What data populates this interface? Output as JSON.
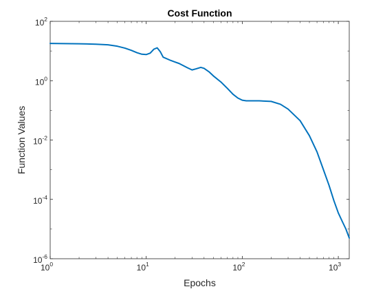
{
  "chart_data": {
    "type": "line",
    "title": "Cost Function",
    "xlabel": "Epochs",
    "ylabel": "Function Values",
    "xscale": "log",
    "yscale": "log",
    "xlim": [
      1,
      1300
    ],
    "ylim": [
      1e-06,
      100
    ],
    "grid": false,
    "legend": "none",
    "x_ticks": [
      {
        "value": 1,
        "base": "10",
        "exp": "0"
      },
      {
        "value": 10,
        "base": "10",
        "exp": "1"
      },
      {
        "value": 100,
        "base": "10",
        "exp": "2"
      },
      {
        "value": 1000,
        "base": "10",
        "exp": "3"
      }
    ],
    "y_ticks": [
      {
        "value": 1e-06,
        "base": "10",
        "exp": "-6"
      },
      {
        "value": 0.0001,
        "base": "10",
        "exp": "-4"
      },
      {
        "value": 0.01,
        "base": "10",
        "exp": "-2"
      },
      {
        "value": 1,
        "base": "10",
        "exp": "0"
      },
      {
        "value": 100,
        "base": "10",
        "exp": "2"
      }
    ],
    "series": [
      {
        "color": "#0072BD",
        "x": [
          1,
          2,
          3,
          4,
          5,
          6,
          7,
          8,
          9,
          10,
          11,
          12,
          13,
          14,
          15,
          18,
          22,
          27,
          30,
          33,
          37,
          40,
          45,
          50,
          60,
          70,
          80,
          90,
          100,
          110,
          130,
          150,
          200,
          250,
          300,
          400,
          500,
          600,
          700,
          800,
          900,
          1000,
          1100,
          1200,
          1300
        ],
        "y": [
          18,
          17.5,
          17,
          16.2,
          14.5,
          12.5,
          10.5,
          8.8,
          7.8,
          7.6,
          8.5,
          11.5,
          12.8,
          9.5,
          6.2,
          4.8,
          3.8,
          2.7,
          2.3,
          2.5,
          2.8,
          2.6,
          2.0,
          1.45,
          0.9,
          0.55,
          0.35,
          0.26,
          0.22,
          0.21,
          0.21,
          0.21,
          0.2,
          0.16,
          0.11,
          0.045,
          0.014,
          0.004,
          0.001,
          0.0003,
          9e-05,
          3.5e-05,
          1.8e-05,
          1e-05,
          5e-06
        ]
      }
    ]
  }
}
